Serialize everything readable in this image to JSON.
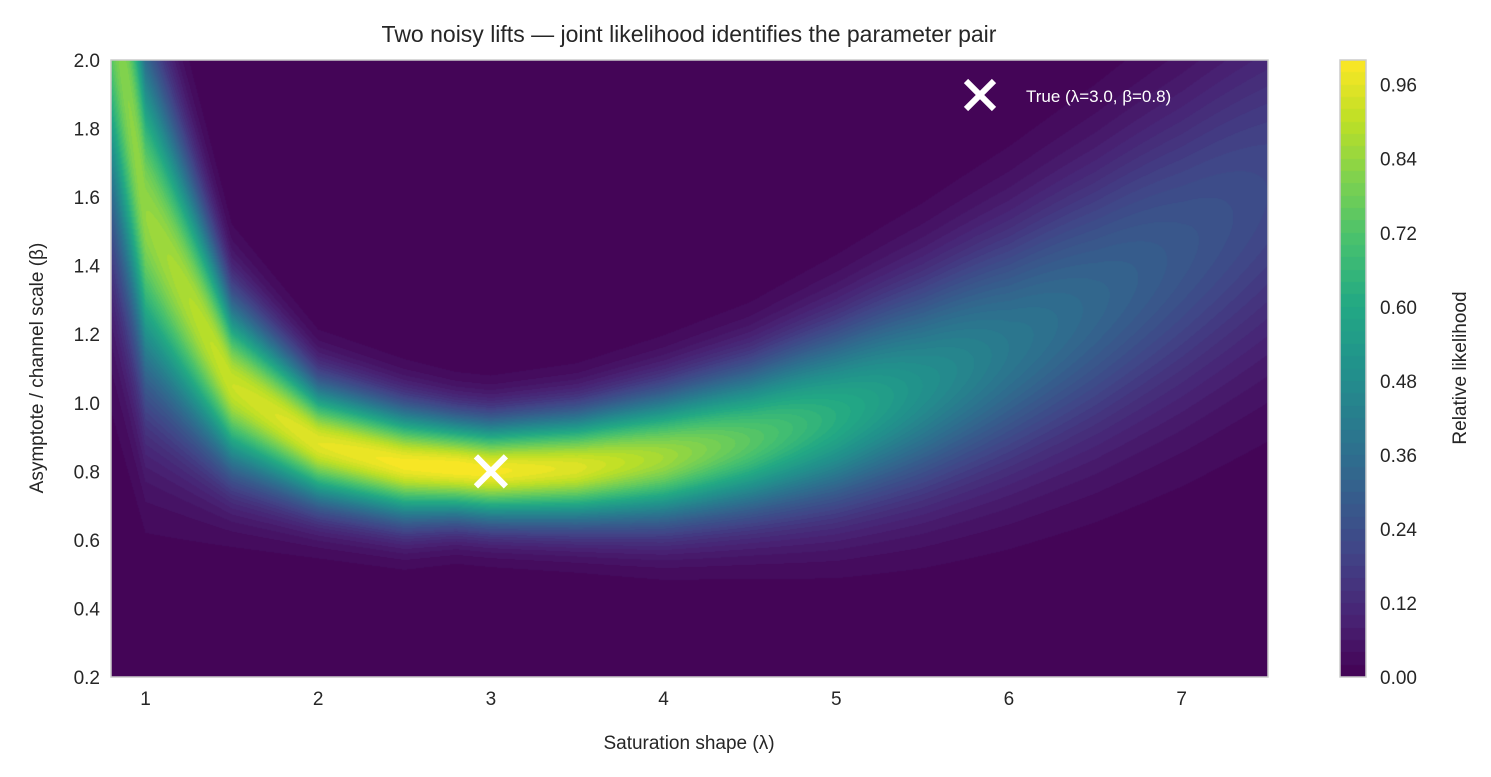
{
  "chart_data": {
    "type": "heatmap",
    "title": "Two noisy lifts — joint likelihood identifies the parameter pair",
    "xlabel": "Saturation shape (λ)",
    "ylabel": "Asymptote / channel scale (β)",
    "xlim": [
      0.8,
      7.5
    ],
    "ylim": [
      0.2,
      2.0
    ],
    "xticks": [
      1,
      2,
      3,
      4,
      5,
      6,
      7
    ],
    "yticks": [
      0.2,
      0.4,
      0.6,
      0.8,
      1.0,
      1.2,
      1.4,
      1.6,
      1.8,
      2.0
    ],
    "colorbar": {
      "label": "Relative likelihood",
      "range": [
        0,
        1.0
      ],
      "ticks": [
        "0.00",
        "0.12",
        "0.24",
        "0.36",
        "0.48",
        "0.60",
        "0.72",
        "0.84",
        "0.96"
      ],
      "level_step": 0.02,
      "colormap": [
        "#440154",
        "#482475",
        "#414487",
        "#355f8d",
        "#2a788e",
        "#21918c",
        "#22a884",
        "#44bf70",
        "#7ad151",
        "#bddf26",
        "#fde725"
      ]
    },
    "ridge": [
      {
        "lambda": 0.8,
        "beta": 2.2,
        "peak": 0.8,
        "sigma": 0.45
      },
      {
        "lambda": 1.0,
        "beta": 1.55,
        "peak": 0.84,
        "sigma": 0.34
      },
      {
        "lambda": 1.5,
        "beta": 1.05,
        "peak": 0.92,
        "sigma": 0.17
      },
      {
        "lambda": 2.0,
        "beta": 0.88,
        "peak": 0.96,
        "sigma": 0.12
      },
      {
        "lambda": 2.5,
        "beta": 0.82,
        "peak": 0.99,
        "sigma": 0.11
      },
      {
        "lambda": 2.8,
        "beta": 0.81,
        "peak": 1.0,
        "sigma": 0.1
      },
      {
        "lambda": 3.0,
        "beta": 0.8,
        "peak": 0.99,
        "sigma": 0.1
      },
      {
        "lambda": 3.5,
        "beta": 0.81,
        "peak": 0.95,
        "sigma": 0.11
      },
      {
        "lambda": 4.0,
        "beta": 0.84,
        "peak": 0.86,
        "sigma": 0.13
      },
      {
        "lambda": 4.5,
        "beta": 0.89,
        "peak": 0.74,
        "sigma": 0.15
      },
      {
        "lambda": 5.0,
        "beta": 0.96,
        "peak": 0.62,
        "sigma": 0.18
      },
      {
        "lambda": 5.5,
        "beta": 1.05,
        "peak": 0.5,
        "sigma": 0.21
      },
      {
        "lambda": 6.0,
        "beta": 1.16,
        "peak": 0.4,
        "sigma": 0.24
      },
      {
        "lambda": 6.5,
        "beta": 1.29,
        "peak": 0.33,
        "sigma": 0.27
      },
      {
        "lambda": 7.0,
        "beta": 1.44,
        "peak": 0.27,
        "sigma": 0.3
      },
      {
        "lambda": 7.5,
        "beta": 1.61,
        "peak": 0.22,
        "sigma": 0.33
      }
    ],
    "marker": {
      "lambda": 3.0,
      "beta": 0.8,
      "color": "#ffffff"
    },
    "legend": {
      "label": "True (λ=3.0, β=0.8)",
      "placement": "top-right"
    }
  }
}
